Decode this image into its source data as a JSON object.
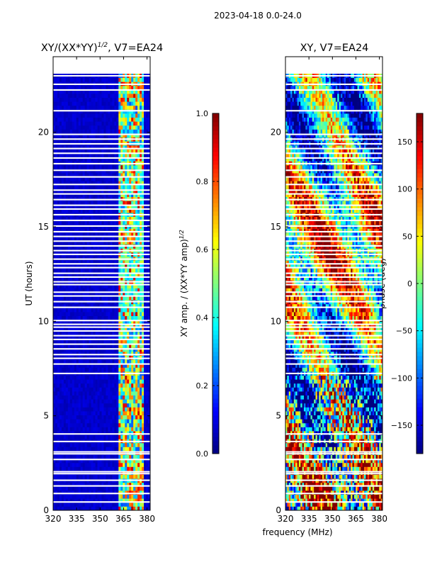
{
  "figure": {
    "suptitle": "2023-04-18 0.0-24.0",
    "shared_xlabel": "frequency (MHz)"
  },
  "chart_data": [
    {
      "type": "heatmap",
      "id": "amp",
      "title_main": "XY/(XX*YY)",
      "title_exp": "1/2",
      "title_tail": ", V7=EA24",
      "ylabel": "UT (hours)",
      "x_ticks": [
        "320",
        "335",
        "350",
        "365",
        "380"
      ],
      "x_tick_values": [
        320,
        335,
        350,
        365,
        380
      ],
      "xlim": [
        320,
        382
      ],
      "y_ticks": [
        "0",
        "5",
        "10",
        "15",
        "20"
      ],
      "y_tick_values": [
        0,
        5,
        10,
        15,
        20
      ],
      "ylim": [
        0,
        24
      ],
      "data_extent_hours": [
        0,
        23.1
      ],
      "colorbar": {
        "label_main": "XY amp. / (XX*YY amp)",
        "label_exp": "1/2",
        "ticks": [
          "0.0",
          "0.2",
          "0.4",
          "0.6",
          "0.8",
          "1.0"
        ],
        "tick_values": [
          0,
          0.2,
          0.4,
          0.6,
          0.8,
          1.0
        ],
        "range": [
          0,
          1
        ],
        "colormap": "jet"
      },
      "low_level_value": 0.05,
      "hot_band_mhz": [
        362,
        378
      ],
      "gap_hours": [
        0.4,
        0.85,
        1.25,
        1.55,
        1.9,
        2.0,
        2.65,
        2.95,
        3.05,
        3.6,
        4.0,
        7.2,
        7.7,
        8.0,
        8.2,
        8.5,
        8.75,
        9.0,
        9.2,
        9.45,
        9.65,
        9.8,
        10.0,
        10.7,
        11.0,
        11.3,
        11.5,
        11.9,
        12.05,
        12.3,
        12.5,
        12.8,
        13.0,
        13.25,
        13.5,
        13.7,
        13.95,
        14.2,
        14.45,
        14.7,
        15.0,
        15.3,
        15.6,
        15.9,
        16.1,
        16.4,
        16.7,
        16.9,
        17.2,
        17.6,
        17.95,
        18.3,
        18.6,
        18.85,
        19.1,
        19.35,
        19.6,
        19.85,
        21.1,
        22.2,
        22.5,
        22.95
      ]
    },
    {
      "type": "heatmap",
      "id": "phase",
      "title": "XY, V7=EA24",
      "x_ticks": [
        "320",
        "335",
        "350",
        "365",
        "380"
      ],
      "x_tick_values": [
        320,
        335,
        350,
        365,
        380
      ],
      "xlim": [
        320,
        382
      ],
      "y_ticks": [
        "0",
        "5",
        "10",
        "15",
        "20"
      ],
      "y_tick_values": [
        0,
        5,
        10,
        15,
        20
      ],
      "ylim": [
        0,
        24
      ],
      "data_extent_hours": [
        0,
        23.1
      ],
      "colorbar": {
        "label": "phase (deg)",
        "ticks": [
          "−150",
          "−100",
          "−50",
          "0",
          "50",
          "100",
          "150"
        ],
        "tick_values": [
          -150,
          -100,
          -50,
          0,
          50,
          100,
          150
        ],
        "range": [
          -180,
          180
        ],
        "colormap": "jet"
      },
      "gap_hours": [
        0.4,
        0.85,
        1.25,
        1.55,
        1.9,
        2.0,
        2.65,
        2.95,
        3.05,
        3.6,
        4.0,
        7.2,
        7.7,
        8.0,
        8.2,
        8.5,
        8.75,
        9.0,
        9.2,
        9.45,
        9.65,
        9.8,
        10.0,
        10.7,
        11.0,
        11.3,
        11.5,
        11.9,
        12.05,
        12.3,
        12.5,
        12.8,
        13.0,
        13.25,
        13.5,
        13.7,
        13.95,
        14.2,
        14.45,
        14.7,
        15.0,
        15.3,
        15.6,
        15.9,
        16.1,
        16.4,
        16.7,
        16.9,
        17.2,
        17.6,
        17.95,
        18.3,
        18.6,
        18.85,
        19.1,
        19.35,
        19.6,
        19.85,
        21.1,
        22.2,
        22.5,
        22.95
      ]
    }
  ]
}
